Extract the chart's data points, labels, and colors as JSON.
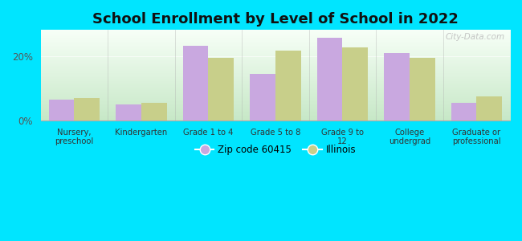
{
  "title": "School Enrollment by Level of School in 2022",
  "categories": [
    "Nursery,\npreschool",
    "Kindergarten",
    "Grade 1 to 4",
    "Grade 5 to 8",
    "Grade 9 to\n12",
    "College\nundergrad",
    "Graduate or\nprofessional"
  ],
  "zip_values": [
    6.5,
    5.0,
    23.0,
    14.5,
    25.5,
    21.0,
    5.5
  ],
  "illinois_values": [
    7.0,
    5.5,
    19.5,
    21.5,
    22.5,
    19.5,
    7.5
  ],
  "zip_color": "#c9a8e0",
  "illinois_color": "#c8cf8a",
  "background_outer": "#00e5ff",
  "background_inner_topleft": "#f8fff8",
  "background_inner_bottomright": "#c8e8c8",
  "ylim": [
    0,
    28
  ],
  "yticks": [
    0,
    20
  ],
  "ytick_labels": [
    "0%",
    "20%"
  ],
  "legend_zip_label": "Zip code 60415",
  "legend_illinois_label": "Illinois",
  "bar_width": 0.38,
  "title_fontsize": 13,
  "watermark": "City-Data.com"
}
